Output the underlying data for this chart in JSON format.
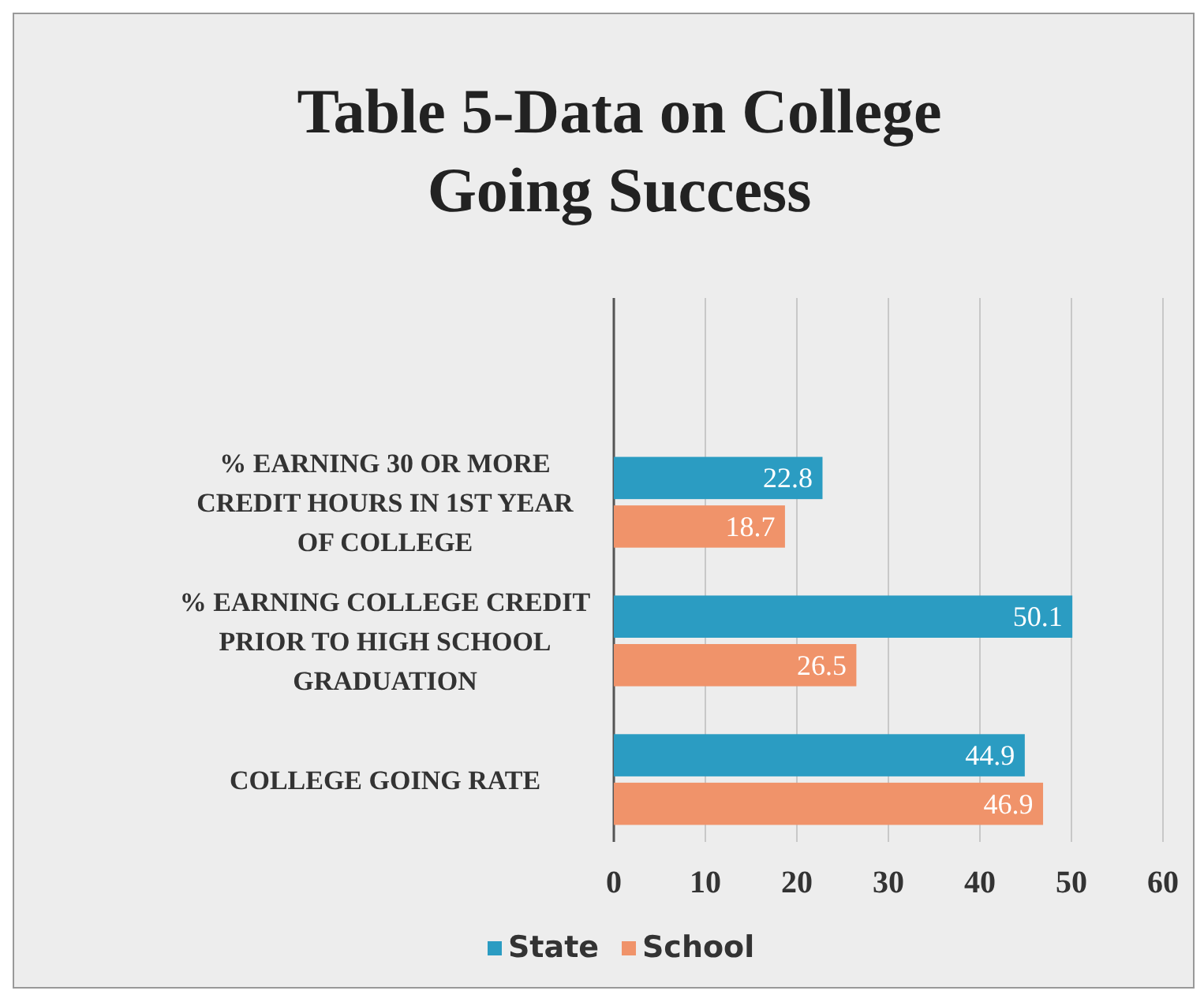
{
  "chart_data": {
    "type": "bar",
    "orientation": "horizontal",
    "title": "Table 5-Data on College Going Success",
    "categories": [
      "% EARNING 30 OR MORE CREDIT HOURS IN 1ST YEAR OF COLLEGE",
      "% EARNING COLLEGE CREDIT PRIOR TO HIGH SCHOOL GRADUATION",
      "COLLEGE GOING RATE"
    ],
    "series": [
      {
        "name": "State",
        "color": "#2b9cc2",
        "values": [
          22.8,
          50.1,
          44.9
        ]
      },
      {
        "name": "School",
        "color": "#f0936a",
        "values": [
          18.7,
          26.5,
          46.9
        ]
      }
    ],
    "xlim": [
      0,
      60
    ],
    "xticks": [
      0,
      10,
      20,
      30,
      40,
      50,
      60
    ],
    "grid": "x",
    "legend": "bottom",
    "data_labels": true
  }
}
